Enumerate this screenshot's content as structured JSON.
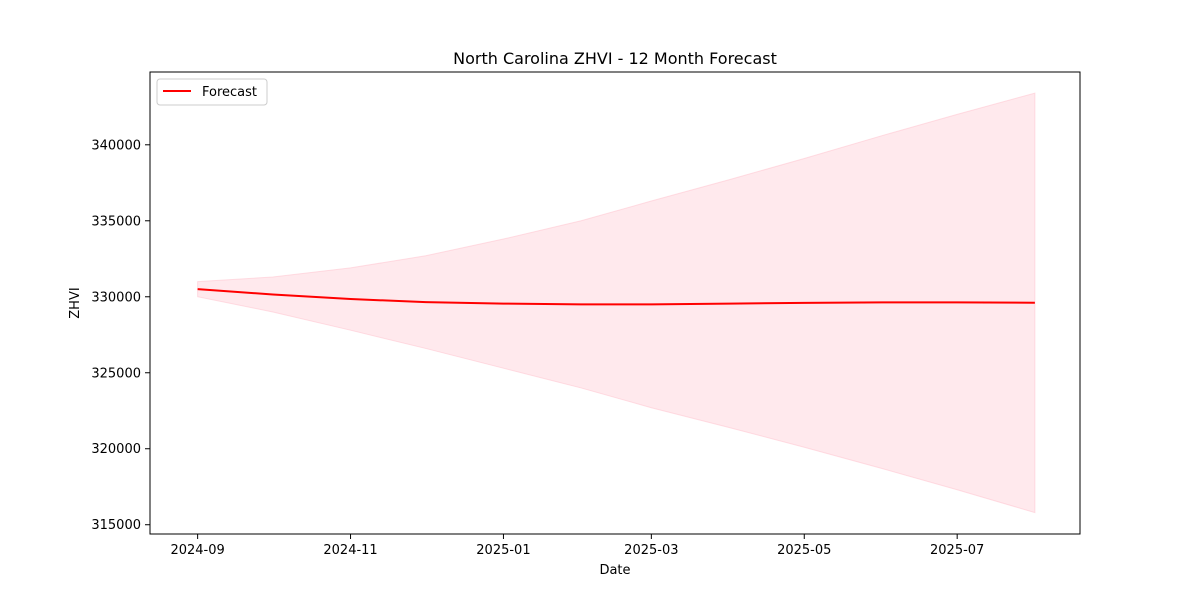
{
  "chart_data": {
    "type": "line",
    "title": "North Carolina ZHVI - 12 Month Forecast",
    "xlabel": "Date",
    "ylabel": "ZHVI",
    "x": [
      "2024-09-01",
      "2024-10-01",
      "2024-11-01",
      "2024-12-01",
      "2025-01-01",
      "2025-02-01",
      "2025-03-01",
      "2025-04-01",
      "2025-05-01",
      "2025-06-01",
      "2025-07-01",
      "2025-08-01"
    ],
    "series": [
      {
        "name": "Forecast",
        "color": "#ff0000",
        "values": [
          330500,
          330150,
          329850,
          329650,
          329550,
          329500,
          329500,
          329550,
          329600,
          329630,
          329630,
          329610
        ]
      }
    ],
    "band": {
      "color": "#ffc0cb",
      "lower": [
        330000,
        329000,
        327800,
        326600,
        325300,
        324000,
        322700,
        321400,
        320100,
        318700,
        317300,
        315800
      ],
      "upper": [
        331000,
        331300,
        331900,
        332700,
        333800,
        335000,
        336300,
        337700,
        339100,
        340600,
        342000,
        343400
      ]
    },
    "x_ticks": [
      {
        "date": "2024-09-01",
        "label": "2024-09"
      },
      {
        "date": "2024-11-01",
        "label": "2024-11"
      },
      {
        "date": "2025-01-01",
        "label": "2025-01"
      },
      {
        "date": "2025-03-01",
        "label": "2025-03"
      },
      {
        "date": "2025-05-01",
        "label": "2025-05"
      },
      {
        "date": "2025-07-01",
        "label": "2025-07"
      }
    ],
    "y_ticks": [
      315000,
      320000,
      325000,
      330000,
      335000,
      340000
    ],
    "xlim": [
      "2024-08-13",
      "2025-08-19"
    ],
    "ylim": [
      314390,
      344790
    ],
    "grid": false,
    "legend": {
      "position": "top-left",
      "entries": [
        "Forecast"
      ]
    }
  }
}
